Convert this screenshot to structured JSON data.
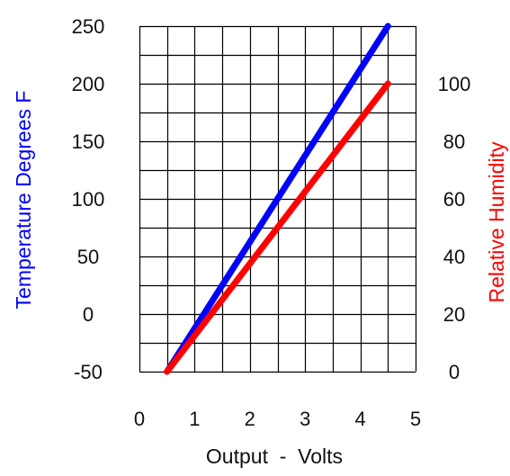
{
  "chart_data": {
    "type": "line",
    "title": "",
    "xlabel": "Output  -  Volts",
    "ylabel_left": "Temperature Degrees F",
    "ylabel_right": "Relative Humidity",
    "xlim": [
      0,
      5
    ],
    "ylim_left": [
      -50,
      250
    ],
    "ylim_right": [
      0,
      120
    ],
    "x_ticks": [
      "0",
      "1",
      "2",
      "3",
      "4",
      "5"
    ],
    "y_left_ticks": [
      "-50",
      "0",
      "50",
      "100",
      "150",
      "200",
      "250"
    ],
    "y_right_ticks": [
      "0",
      "20",
      "40",
      "60",
      "80",
      "100"
    ],
    "grid": true,
    "grid_x_step": 0.5,
    "grid_y_step": 25,
    "series": [
      {
        "axis": "left",
        "color": "#0000ff",
        "x": [
          0.5,
          4.5
        ],
        "y": [
          -50,
          250
        ]
      },
      {
        "axis": "right",
        "color": "#ff0000",
        "x": [
          0.5,
          4.5
        ],
        "y": [
          0,
          100
        ]
      }
    ],
    "colors": {
      "grid": "#000000",
      "left_axis_title": "#0000ff",
      "right_axis_title": "#ff0000",
      "text": "#111111"
    }
  }
}
